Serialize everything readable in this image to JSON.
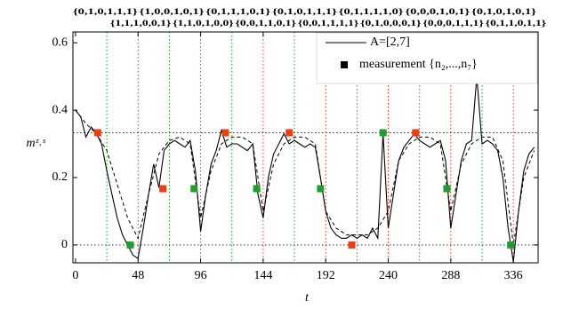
{
  "chart_data": {
    "type": "line",
    "xlabel": "t",
    "ylabel": "mᶻ˒ˢ",
    "xlim": [
      -2,
      355
    ],
    "ylim": [
      -0.053,
      0.632
    ],
    "xticks": [
      0,
      48,
      96,
      144,
      192,
      240,
      288,
      336
    ],
    "yticks": [
      0,
      0.2,
      0.4,
      0.6
    ],
    "top_labels": [
      {
        "color": "#e8341c",
        "labels": [
          "{0,1,0,1,1,1}",
          "{1,0,0,1,0,1}",
          "{0,1,1,1,0,1}",
          "{0,1,0,1,1,1}",
          "{0,1,1,1,1,0}",
          "{0,0,0,1,0,1}",
          "{0,1,0,1,0,1}"
        ]
      },
      {
        "color": "#1e9e2e",
        "labels": [
          "{1,1,1,0,0,1}",
          "{1,1,0,1,0,0}",
          "{0,0,1,1,0,1}",
          "{0,0,1,1,1,1}",
          "{0,1,0,0,0,1}",
          "{0,0,0,1,1,1}",
          "{0,1,1,0,1,1}"
        ]
      }
    ],
    "vlines": [
      {
        "color": "#e8341c",
        "x": [
          48,
          96,
          144,
          192,
          240,
          288,
          336
        ]
      },
      {
        "color": "#1e9e2e",
        "x": [
          24,
          72,
          120,
          168,
          216,
          264,
          312
        ]
      }
    ],
    "hlines": [
      0.333,
      0
    ],
    "series": [
      {
        "name": "A=[2,7]",
        "color": "#000000",
        "dash": false,
        "x": [
          0,
          4,
          8,
          12,
          16,
          20,
          24,
          28,
          32,
          36,
          40,
          44,
          48,
          52,
          56,
          60,
          64,
          68,
          72,
          76,
          80,
          84,
          88,
          92,
          96,
          100,
          104,
          108,
          112,
          116,
          120,
          124,
          128,
          132,
          136,
          140,
          144,
          148,
          152,
          156,
          160,
          164,
          168,
          172,
          176,
          180,
          184,
          188,
          192,
          196,
          200,
          204,
          208,
          212,
          216,
          220,
          224,
          228,
          232,
          236,
          240,
          244,
          248,
          252,
          256,
          260,
          264,
          268,
          272,
          276,
          280,
          284,
          288,
          292,
          296,
          300,
          304,
          308,
          312,
          316,
          320,
          324,
          328,
          332,
          336,
          340,
          344,
          348,
          352
        ],
        "values": [
          0.4,
          0.38,
          0.32,
          0.35,
          0.33,
          0.3,
          0.22,
          0.15,
          0.08,
          0.03,
          0.0,
          -0.03,
          -0.04,
          0.05,
          0.15,
          0.24,
          0.17,
          0.28,
          0.3,
          0.31,
          0.3,
          0.29,
          0.31,
          0.22,
          0.04,
          0.15,
          0.24,
          0.28,
          0.34,
          0.29,
          0.3,
          0.3,
          0.29,
          0.28,
          0.3,
          0.15,
          0.08,
          0.2,
          0.27,
          0.3,
          0.33,
          0.3,
          0.31,
          0.3,
          0.29,
          0.3,
          0.29,
          0.2,
          0.1,
          0.05,
          0.03,
          0.02,
          0.02,
          0.03,
          0.02,
          0.03,
          0.02,
          0.05,
          0.02,
          0.33,
          0.05,
          0.15,
          0.25,
          0.29,
          0.31,
          0.33,
          0.31,
          0.3,
          0.29,
          0.3,
          0.31,
          0.25,
          0.05,
          0.15,
          0.25,
          0.3,
          0.31,
          0.5,
          0.3,
          0.31,
          0.3,
          0.28,
          0.2,
          0.05,
          -0.05,
          0.1,
          0.22,
          0.27,
          0.29
        ]
      },
      {
        "color": "#000000",
        "dash": true,
        "x": [
          0,
          8,
          16,
          24,
          32,
          40,
          48,
          56,
          64,
          72,
          80,
          88,
          96,
          104,
          112,
          120,
          128,
          136,
          144,
          152,
          160,
          168,
          176,
          184,
          192,
          200,
          208,
          216,
          224,
          232,
          240,
          248,
          256,
          264,
          272,
          280,
          288,
          296,
          304,
          312,
          320,
          328,
          336,
          344,
          352
        ],
        "values": [
          0.4,
          0.36,
          0.33,
          0.28,
          0.18,
          0.08,
          0.02,
          0.15,
          0.27,
          0.31,
          0.32,
          0.3,
          0.08,
          0.22,
          0.3,
          0.32,
          0.32,
          0.3,
          0.1,
          0.24,
          0.3,
          0.32,
          0.32,
          0.3,
          0.1,
          0.05,
          0.03,
          0.03,
          0.03,
          0.05,
          0.1,
          0.25,
          0.3,
          0.32,
          0.32,
          0.3,
          0.1,
          0.24,
          0.3,
          0.32,
          0.32,
          0.25,
          0.0,
          0.2,
          0.28
        ]
      }
    ],
    "markers": {
      "name": "measurement {n₂,...,n₇}",
      "legend_color": "#000000",
      "groups": [
        {
          "color": "#f03c14",
          "x": [
            17,
            67,
            115,
            164,
            212,
            261,
            310
          ],
          "values": [
            0.333,
            0.167,
            0.333,
            0.333,
            0,
            0.333,
            0.5
          ]
        },
        {
          "color": "#1e9e2e",
          "x": [
            42,
            91,
            139,
            188,
            236,
            285,
            334
          ],
          "values": [
            0,
            0.167,
            0.167,
            0.167,
            0.333,
            0.167,
            0
          ]
        }
      ]
    }
  }
}
